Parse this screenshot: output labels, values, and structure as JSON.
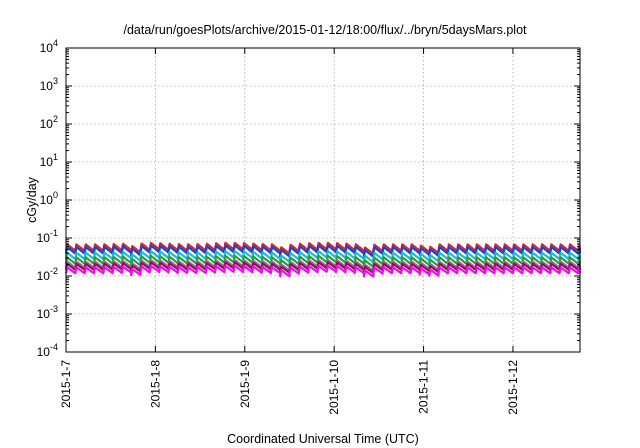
{
  "chart_data": {
    "type": "line",
    "title": "/data/run/goesPlots/archive/2015-01-12/18:00/flux/../bryn/5daysMars.plot",
    "xlabel": "Coordinated Universal Time (UTC)",
    "ylabel": "cGy/day",
    "yscale": "log",
    "ylim": [
      0.0001,
      10000
    ],
    "xlim": [
      "2015-01-07 00:00",
      "2015-01-12 18:00"
    ],
    "x_tick_labels": [
      "2015-1-7",
      "2015-1-8",
      "2015-1-9",
      "2015-1-10",
      "2015-1-11",
      "2015-1-12"
    ],
    "y_ticks": [
      {
        "base": "10",
        "exp": "-4",
        "value": 0.0001
      },
      {
        "base": "10",
        "exp": "-3",
        "value": 0.001
      },
      {
        "base": "10",
        "exp": "-2",
        "value": 0.01
      },
      {
        "base": "10",
        "exp": "-1",
        "value": 0.1
      },
      {
        "base": "10",
        "exp": "0",
        "value": 1
      },
      {
        "base": "10",
        "exp": "1",
        "value": 10
      },
      {
        "base": "10",
        "exp": "2",
        "value": 100
      },
      {
        "base": "10",
        "exp": "3",
        "value": 1000
      },
      {
        "base": "10",
        "exp": "4",
        "value": 10000
      }
    ],
    "grid": true,
    "legend": "none",
    "sawtooth_period_hours": 2.5,
    "series": [
      {
        "color": "#d62728",
        "peak": 0.068,
        "trough": 0.046
      },
      {
        "color": "#1f3fd6",
        "peak": 0.058,
        "trough": 0.039
      },
      {
        "color": "#17becf",
        "peak": 0.041,
        "trough": 0.028
      },
      {
        "color": "#2ca02c",
        "peak": 0.031,
        "trough": 0.021
      },
      {
        "color": "#9467bd",
        "peak": 0.024,
        "trough": 0.0165
      },
      {
        "color": "#8b1a3a",
        "peak": 0.021,
        "trough": 0.0145
      },
      {
        "color": "#ff00ff",
        "peak": 0.017,
        "trough": 0.0118
      }
    ]
  }
}
